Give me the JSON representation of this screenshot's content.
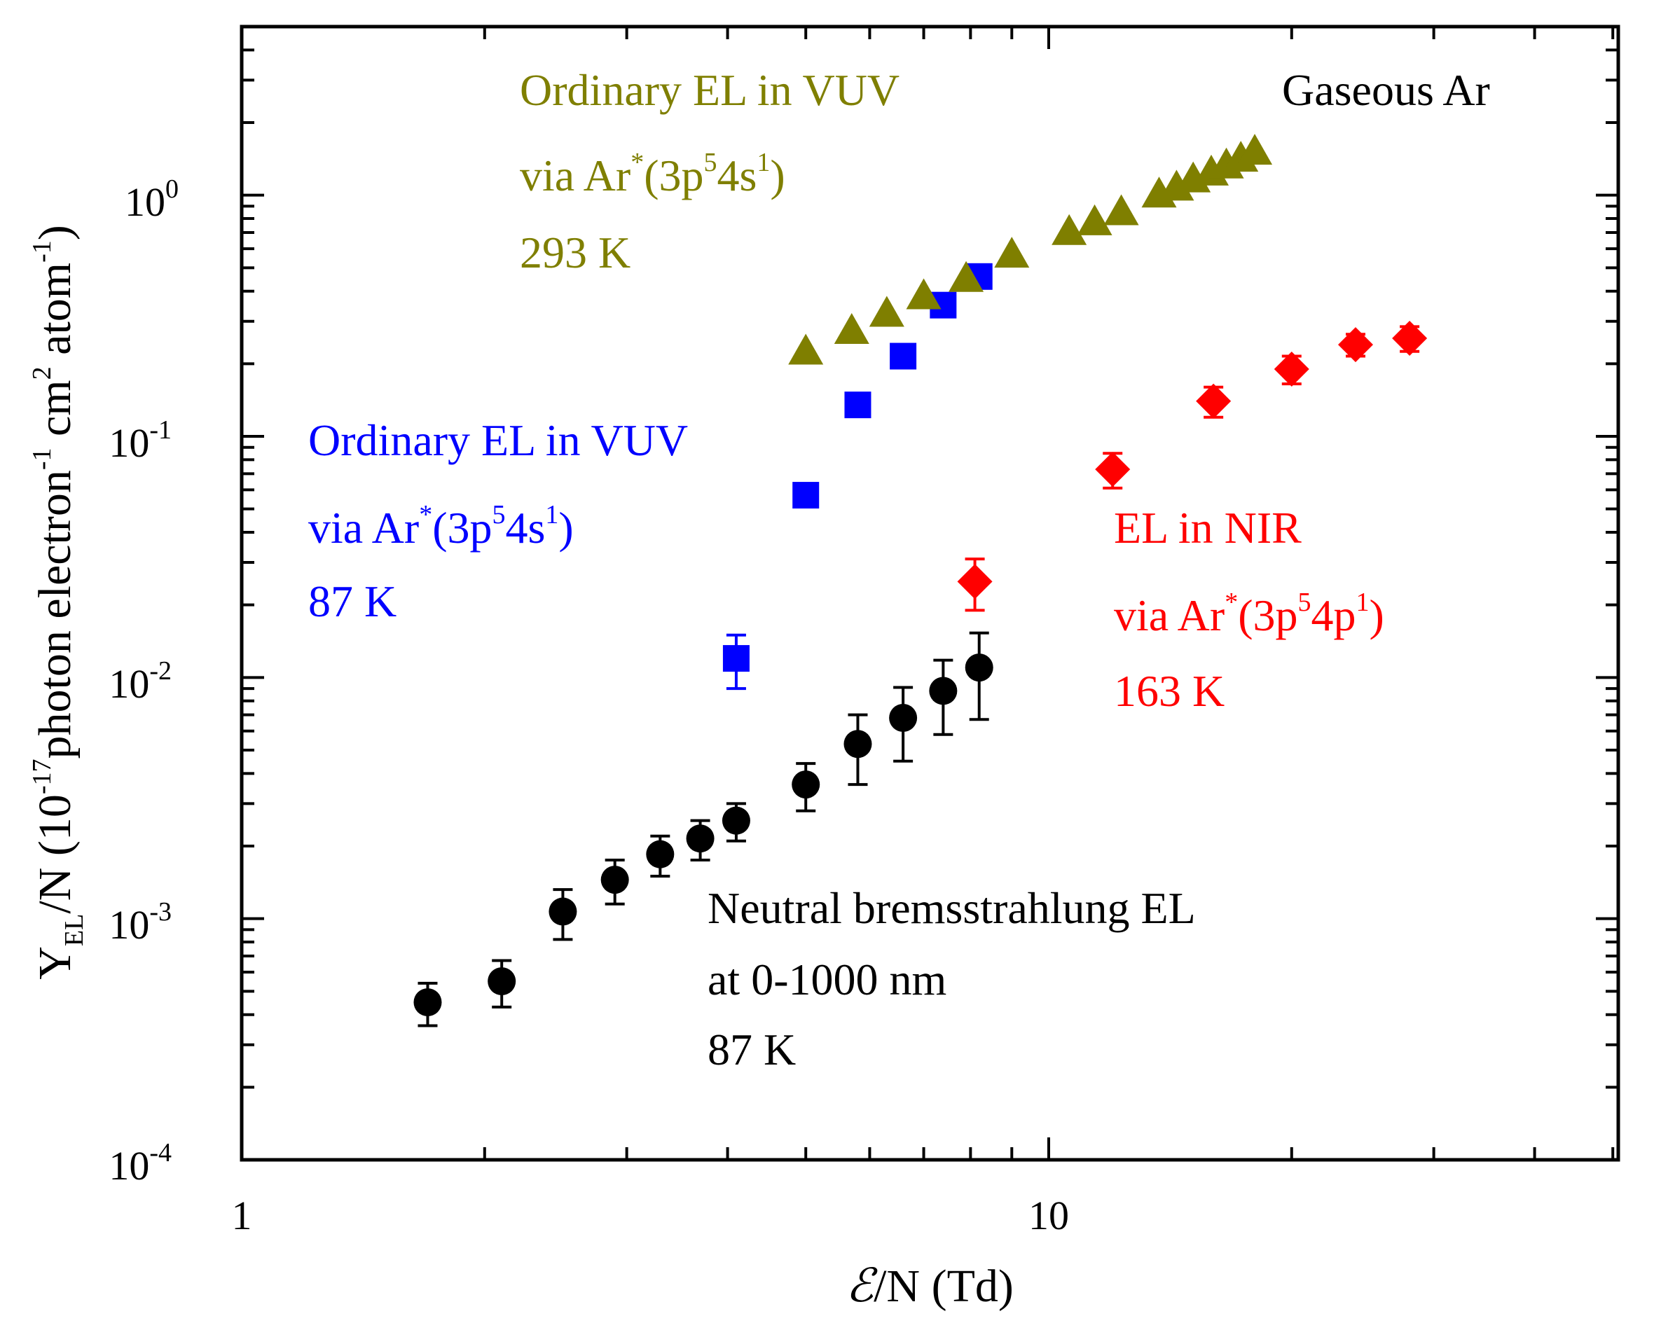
{
  "chart_data": {
    "type": "scatter",
    "x_scale": "log",
    "y_scale": "log",
    "xlim": [
      1,
      50
    ],
    "ylim": [
      0.0001,
      5
    ],
    "xlabel": "/N (Td)",
    "xlabel_symbol": "ℰ",
    "ylabel_parts": {
      "y": "Y",
      "sub": "EL",
      "p1": "/N (10",
      "e1": "-17",
      "p2": "photon electron",
      "e2": "-1",
      "p3": " cm",
      "e3": "2",
      "p4": " atom",
      "e4": "-1",
      "p5": ")"
    },
    "x_ticks": [
      {
        "value": 1,
        "label": "1"
      },
      {
        "value": 10,
        "label": "10"
      }
    ],
    "y_ticks": [
      {
        "value": 1,
        "base": "10",
        "exp": "0"
      },
      {
        "value": 0.1,
        "base": "10",
        "exp": "-1"
      },
      {
        "value": 0.01,
        "base": "10",
        "exp": "-2"
      },
      {
        "value": 0.001,
        "base": "10",
        "exp": "-3"
      },
      {
        "value": 0.0001,
        "base": "10",
        "exp": "-4"
      }
    ],
    "corner_label": "Gaseous Ar",
    "series": [
      {
        "name": "Ordinary EL in VUV 293 K",
        "marker": "triangle",
        "color": "#7f7f00",
        "x": [
          5.0,
          5.7,
          6.3,
          7.0,
          7.9,
          9.0,
          10.6,
          11.4,
          12.3,
          13.7,
          14.4,
          15.1,
          15.9,
          16.6,
          17.3,
          18.0
        ],
        "y": [
          0.23,
          0.28,
          0.33,
          0.39,
          0.46,
          0.58,
          0.72,
          0.79,
          0.87,
          1.03,
          1.1,
          1.19,
          1.27,
          1.36,
          1.45,
          1.55
        ]
      },
      {
        "name": "Ordinary EL in VUV 87 K",
        "marker": "square",
        "color": "#0000ff",
        "x": [
          4.1,
          5.0,
          5.8,
          6.6,
          7.4,
          8.2
        ],
        "y": [
          0.012,
          0.057,
          0.135,
          0.215,
          0.35,
          0.46
        ],
        "yerr": [
          0.003,
          0.005,
          0.01,
          0.015,
          0.02,
          0.02
        ]
      },
      {
        "name": "EL in NIR 163 K",
        "marker": "diamond",
        "color": "#ff0000",
        "x": [
          8.1,
          12.0,
          16.0,
          20.0,
          24.0,
          28.0
        ],
        "y": [
          0.025,
          0.073,
          0.14,
          0.19,
          0.24,
          0.255
        ],
        "yerr": [
          0.006,
          0.012,
          0.02,
          0.025,
          0.025,
          0.03
        ]
      },
      {
        "name": "Neutral bremsstrahlung EL 87 K",
        "marker": "circle",
        "color": "#000000",
        "x": [
          1.7,
          2.1,
          2.5,
          2.9,
          3.3,
          3.7,
          4.1,
          5.0,
          5.8,
          6.6,
          7.4,
          8.2
        ],
        "y": [
          0.00045,
          0.00055,
          0.00107,
          0.00145,
          0.00185,
          0.00215,
          0.00255,
          0.0036,
          0.0053,
          0.0068,
          0.0088,
          0.011
        ],
        "yerr": [
          9e-05,
          0.00012,
          0.00025,
          0.0003,
          0.00035,
          0.0004,
          0.00045,
          0.0008,
          0.0017,
          0.0023,
          0.003,
          0.0043
        ]
      }
    ],
    "annotations": [
      {
        "color": "#7f7f00",
        "line1": "Ordinary EL in VUV",
        "via": "via Ar",
        "state_a": "(3p",
        "exp_a": "5",
        "state_b": "4s",
        "exp_b": "1",
        "close": ")",
        "temp": "293 K"
      },
      {
        "color": "#0000ff",
        "line1": "Ordinary EL in VUV",
        "via": "via Ar",
        "state_a": "(3p",
        "exp_a": "5",
        "state_b": "4s",
        "exp_b": "1",
        "close": ")",
        "temp": "87 K"
      },
      {
        "color": "#ff0000",
        "line1": "EL in NIR",
        "via": "via Ar",
        "state_a": "(3p",
        "exp_a": "5",
        "state_b": "4p",
        "exp_b": "1",
        "close": ")",
        "temp": "163 K"
      },
      {
        "color": "#000000",
        "line1": "Neutral bremsstrahlung EL",
        "line2": "at 0-1000 nm",
        "temp": "87 K"
      }
    ],
    "star": "*"
  }
}
